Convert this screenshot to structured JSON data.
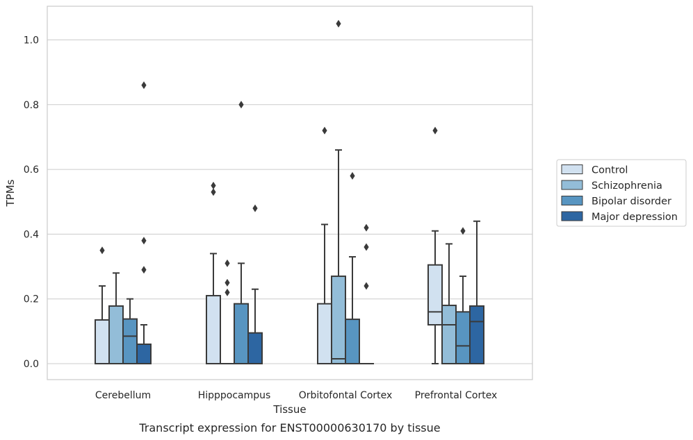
{
  "chart_data": {
    "type": "box",
    "caption": "Transcript expression for ENST00000630170 by tissue",
    "xlabel": "Tissue",
    "ylabel": "TPMs",
    "ylim": [
      -0.05,
      1.1
    ],
    "yticks": [
      0.0,
      0.2,
      0.4,
      0.6,
      0.8,
      1.0
    ],
    "ytick_labels": [
      "0.0",
      "0.2",
      "0.4",
      "0.6",
      "0.8",
      "1.0"
    ],
    "grid": true,
    "legend_position": "outside-right",
    "categories": [
      "Cerebellum",
      "Hipppocampus",
      "Orbitofontal Cortex",
      "Prefrontal Cortex"
    ],
    "series": [
      {
        "name": "Control",
        "color": "#d1e1f0",
        "boxes": [
          {
            "whislo": 0.0,
            "q1": 0.0,
            "med": 0.0,
            "q3": 0.135,
            "whishi": 0.24,
            "fliers": [
              0.35
            ]
          },
          {
            "whislo": 0.0,
            "q1": 0.0,
            "med": 0.0,
            "q3": 0.21,
            "whishi": 0.34,
            "fliers": [
              0.53,
              0.55
            ]
          },
          {
            "whislo": 0.0,
            "q1": 0.0,
            "med": 0.0,
            "q3": 0.185,
            "whishi": 0.43,
            "fliers": [
              0.72
            ]
          },
          {
            "whislo": 0.0,
            "q1": 0.12,
            "med": 0.16,
            "q3": 0.305,
            "whishi": 0.41,
            "fliers": [
              0.72
            ]
          }
        ]
      },
      {
        "name": "Schizophrenia",
        "color": "#93bdd8",
        "boxes": [
          {
            "whislo": 0.0,
            "q1": 0.0,
            "med": 0.0,
            "q3": 0.178,
            "whishi": 0.28,
            "fliers": []
          },
          {
            "whislo": 0.0,
            "q1": 0.0,
            "med": 0.0,
            "q3": 0.0,
            "whishi": 0.0,
            "fliers": [
              0.22,
              0.25,
              0.31
            ]
          },
          {
            "whislo": 0.0,
            "q1": 0.0,
            "med": 0.015,
            "q3": 0.27,
            "whishi": 0.66,
            "fliers": [
              1.05
            ]
          },
          {
            "whislo": 0.0,
            "q1": 0.0,
            "med": 0.12,
            "q3": 0.18,
            "whishi": 0.37,
            "fliers": []
          }
        ]
      },
      {
        "name": "Bipolar disorder",
        "color": "#5895c1",
        "boxes": [
          {
            "whislo": 0.0,
            "q1": 0.0,
            "med": 0.085,
            "q3": 0.138,
            "whishi": 0.2,
            "fliers": []
          },
          {
            "whislo": 0.0,
            "q1": 0.0,
            "med": 0.0,
            "q3": 0.185,
            "whishi": 0.31,
            "fliers": [
              0.8
            ]
          },
          {
            "whislo": 0.0,
            "q1": 0.0,
            "med": 0.0,
            "q3": 0.137,
            "whishi": 0.33,
            "fliers": [
              0.58
            ]
          },
          {
            "whislo": 0.0,
            "q1": 0.0,
            "med": 0.055,
            "q3": 0.16,
            "whishi": 0.27,
            "fliers": [
              0.41
            ]
          }
        ]
      },
      {
        "name": "Major depression",
        "color": "#2d66a2",
        "boxes": [
          {
            "whislo": 0.0,
            "q1": 0.0,
            "med": 0.0,
            "q3": 0.06,
            "whishi": 0.12,
            "fliers": [
              0.29,
              0.38,
              0.86
            ]
          },
          {
            "whislo": 0.0,
            "q1": 0.0,
            "med": 0.0,
            "q3": 0.095,
            "whishi": 0.23,
            "fliers": [
              0.48
            ]
          },
          {
            "whislo": 0.0,
            "q1": 0.0,
            "med": 0.0,
            "q3": 0.0,
            "whishi": 0.0,
            "fliers": [
              0.24,
              0.36,
              0.42
            ]
          },
          {
            "whislo": 0.0,
            "q1": 0.0,
            "med": 0.13,
            "q3": 0.178,
            "whishi": 0.44,
            "fliers": []
          }
        ]
      }
    ]
  }
}
